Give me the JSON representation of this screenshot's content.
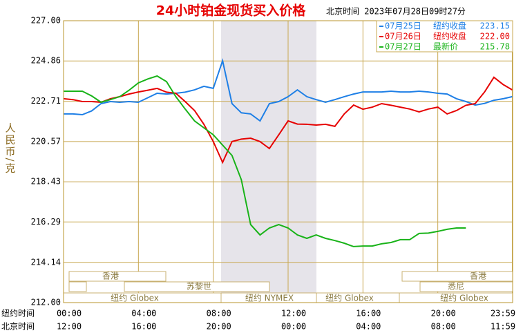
{
  "chart_data": {
    "type": "line",
    "title": "24小时铂金现货买入价格",
    "subtitle": "北京时间  2023年07月28日09时27分",
    "ylabel": "人民币/克",
    "xlabel": "纽约时间",
    "x2label": "北京时间",
    "x": [
      0,
      0.5,
      1,
      1.5,
      2,
      2.5,
      3,
      3.5,
      4,
      4.5,
      5,
      5.5,
      6,
      6.5,
      7,
      7.5,
      8,
      8.5,
      9,
      9.5,
      10,
      10.5,
      11,
      11.5,
      12,
      12.5,
      13,
      13.5,
      14,
      14.5,
      15,
      15.5,
      16,
      16.5,
      17,
      17.5,
      18,
      18.5,
      19,
      19.5,
      20,
      20.5,
      21,
      21.5,
      22,
      22.5,
      23,
      23.5,
      23.98
    ],
    "series": [
      {
        "name": "07月25日",
        "legend_note": "纽约收盘",
        "legend_value": 223.15,
        "color": "#1e7fe6",
        "values": [
          222.04,
          222.04,
          222.0,
          222.2,
          222.59,
          222.7,
          222.66,
          222.7,
          222.66,
          222.9,
          223.14,
          223.1,
          223.14,
          223.2,
          223.32,
          223.51,
          223.4,
          224.87,
          222.59,
          222.1,
          222.04,
          221.67,
          222.59,
          222.7,
          222.96,
          223.32,
          222.96,
          222.8,
          222.66,
          222.8,
          222.96,
          223.1,
          223.21,
          223.21,
          223.21,
          223.25,
          223.21,
          223.21,
          223.25,
          223.21,
          223.14,
          223.1,
          222.85,
          222.7,
          222.51,
          222.6,
          222.77,
          222.85,
          222.96
        ]
      },
      {
        "name": "07月26日",
        "legend_note": "纽约收盘",
        "legend_value": {
          "value": 222,
          "label": "222.00"
        },
        "color": "#e60000",
        "values": [
          222.85,
          222.8,
          222.7,
          222.7,
          222.66,
          222.85,
          222.96,
          223.1,
          223.21,
          223.3,
          223.4,
          223.2,
          223.14,
          222.7,
          222.22,
          221.49,
          220.57,
          219.46,
          220.57,
          220.7,
          220.75,
          220.57,
          220.2,
          220.93,
          221.67,
          221.5,
          221.49,
          221.45,
          221.49,
          221.38,
          222.04,
          222.51,
          222.29,
          222.4,
          222.59,
          222.5,
          222.4,
          222.3,
          222.15,
          222.3,
          222.4,
          222.04,
          222.22,
          222.5,
          222.59,
          223.21,
          223.99,
          223.6,
          223.32
        ]
      },
      {
        "name": "07月27日",
        "legend_note": "最新价",
        "legend_value": 215.78,
        "color": "#19b319",
        "values": [
          223.25,
          223.25,
          223.25,
          223.0,
          222.66,
          222.8,
          222.96,
          223.3,
          223.69,
          223.9,
          224.06,
          223.76,
          222.96,
          222.3,
          221.67,
          221.3,
          220.93,
          220.38,
          219.83,
          218.54,
          216.15,
          215.6,
          215.97,
          216.15,
          215.97,
          215.6,
          215.42,
          215.6,
          215.42,
          215.3,
          215.16,
          214.98,
          215.01,
          215.01,
          215.13,
          215.2,
          215.35,
          215.35,
          215.68,
          215.7,
          215.79,
          215.9,
          215.97,
          215.97,
          null,
          null,
          null,
          null,
          null
        ]
      }
    ],
    "xlim": [
      0,
      24
    ],
    "ylim": [
      212,
      227
    ],
    "yticks": [
      {
        "value": 212,
        "label": "212.00"
      },
      214.14,
      216.29,
      218.43,
      220.57,
      222.71,
      224.86,
      {
        "value": 227,
        "label": "227.00"
      }
    ],
    "xticks": [
      {
        "value": 0,
        "label": "00:00"
      },
      {
        "value": 4,
        "label": "04:00"
      },
      {
        "value": 8,
        "label": "08:00"
      },
      {
        "value": 12,
        "label": "12:00"
      },
      {
        "value": 16,
        "label": "16:00"
      },
      {
        "value": 20,
        "label": "20:00"
      },
      {
        "value": 23.98,
        "label": "23:59"
      }
    ],
    "x2ticks": [
      {
        "value": 0,
        "label": "12:00"
      },
      {
        "value": 4,
        "label": "16:00"
      },
      {
        "value": 8,
        "label": "20:00"
      },
      {
        "value": 12,
        "label": "00:00"
      },
      {
        "value": 16,
        "label": "04:00"
      },
      {
        "value": 20,
        "label": "08:00"
      },
      {
        "value": 23.98,
        "label": "11:59"
      }
    ],
    "grid": true,
    "legend": "upper right",
    "sessions": [
      "香港",
      "香港",
      "苏黎世",
      "悉尼",
      "纽约 Globex",
      "纽约 NYMEX",
      "纽约 Globex",
      "纽约 Globex"
    ]
  }
}
